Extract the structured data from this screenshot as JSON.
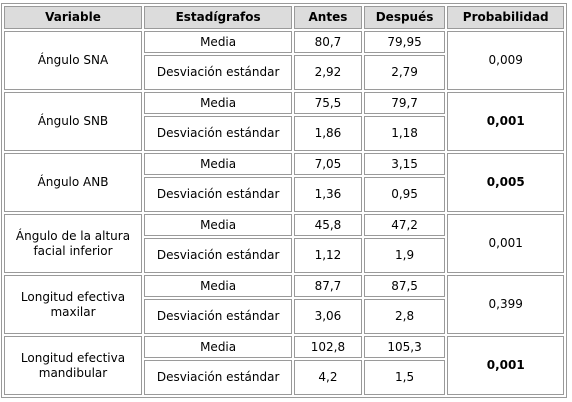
{
  "headers": {
    "variable": "Variable",
    "estadigrafos": "Estadígrafos",
    "antes": "Antes",
    "despues": "Después",
    "probabilidad": "Probabilidad"
  },
  "rows": [
    {
      "variable": "Ángulo SNA",
      "media_label": "Media",
      "media_antes": "80,7",
      "media_despues": "79,95",
      "desv_label": "Desviación estándar",
      "desv_antes": "2,92",
      "desv_despues": "2,79",
      "probabilidad": "0,009",
      "bold": false
    },
    {
      "variable": "Ángulo SNB",
      "media_label": "Media",
      "media_antes": "75,5",
      "media_despues": "79,7",
      "desv_label": "Desviación estándar",
      "desv_antes": "1,86",
      "desv_despues": "1,18",
      "probabilidad": "0,001",
      "bold": true
    },
    {
      "variable": "Ángulo ANB",
      "media_label": "Media",
      "media_antes": "7,05",
      "media_despues": "3,15",
      "desv_label": "Desviación estándar",
      "desv_antes": "1,36",
      "desv_despues": "0,95",
      "probabilidad": "0,005",
      "bold": true
    },
    {
      "variable": "Ángulo de la altura facial inferior",
      "media_label": "Media",
      "media_antes": "45,8",
      "media_despues": "47,2",
      "desv_label": "Desviación estándar",
      "desv_antes": "1,12",
      "desv_despues": "1,9",
      "probabilidad": "0,001",
      "bold": false
    },
    {
      "variable": "Longitud efectiva maxilar",
      "media_label": "Media",
      "media_antes": "87,7",
      "media_despues": "87,5",
      "desv_label": "Desviación estándar",
      "desv_antes": "3,06",
      "desv_despues": "2,8",
      "probabilidad": "0,399",
      "bold": false
    },
    {
      "variable": "Longitud efectiva mandibular",
      "media_label": "Media",
      "media_antes": "102,8",
      "media_despues": "105,3",
      "desv_label": "Desviación estándar",
      "desv_antes": "4,2",
      "desv_despues": "1,5",
      "probabilidad": "0,001",
      "bold": true
    }
  ]
}
